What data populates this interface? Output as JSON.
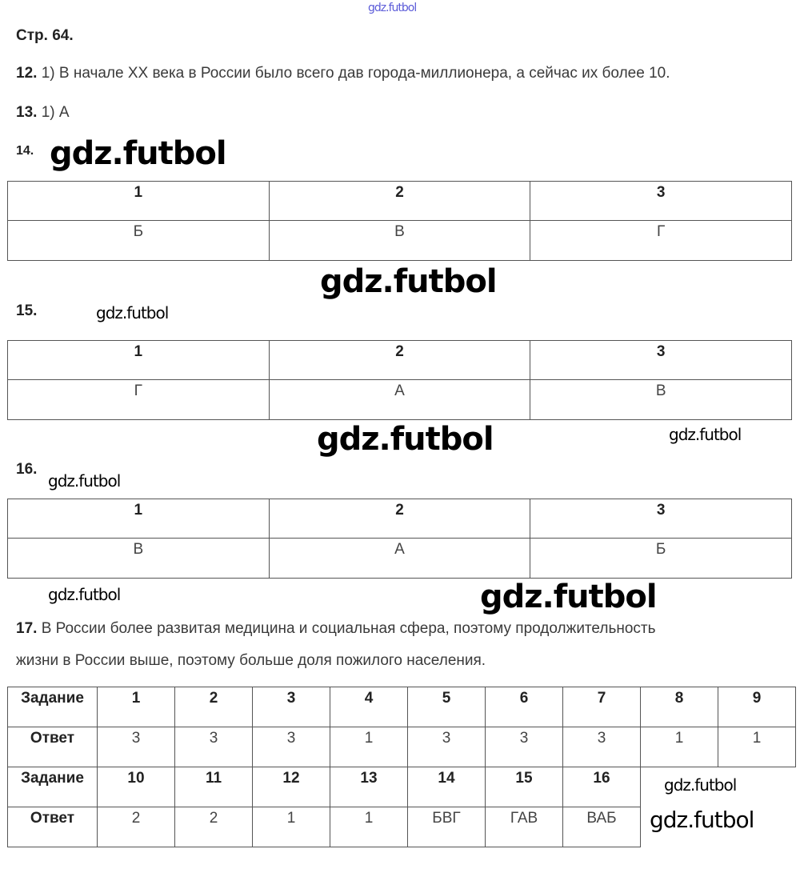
{
  "watermark": "gdz.futbol",
  "page_label": "Стр. 64.",
  "q12": {
    "num": "12.",
    "text": "1) В начале XX века в России было всего дав города-миллионера, а сейчас их более 10."
  },
  "q13": {
    "num": "13.",
    "text": "1) А"
  },
  "q14": {
    "num": "14.",
    "headers": [
      "1",
      "2",
      "3"
    ],
    "answers": [
      "Б",
      "В",
      "Г"
    ]
  },
  "q15": {
    "num": "15.",
    "headers": [
      "1",
      "2",
      "3"
    ],
    "answers": [
      "Г",
      "А",
      "В"
    ]
  },
  "q16": {
    "num": "16.",
    "headers": [
      "1",
      "2",
      "3"
    ],
    "answers": [
      "В",
      "А",
      "Б"
    ]
  },
  "q17": {
    "num": "17.",
    "line1": "В России более развитая медицина и социальная сфера, поэтому продолжительность",
    "line2": "жизни в России выше, поэтому больше доля пожилого населения."
  },
  "summary": {
    "task_label": "Задание",
    "answer_label": "Ответ",
    "row1_tasks": [
      "1",
      "2",
      "3",
      "4",
      "5",
      "6",
      "7",
      "8",
      "9"
    ],
    "row1_answers": [
      "3",
      "3",
      "3",
      "1",
      "3",
      "3",
      "3",
      "1",
      "1"
    ],
    "row2_tasks": [
      "10",
      "11",
      "12",
      "13",
      "14",
      "15",
      "16"
    ],
    "row2_answers": [
      "2",
      "2",
      "1",
      "1",
      "БВГ",
      "ГАВ",
      "ВАБ"
    ]
  }
}
